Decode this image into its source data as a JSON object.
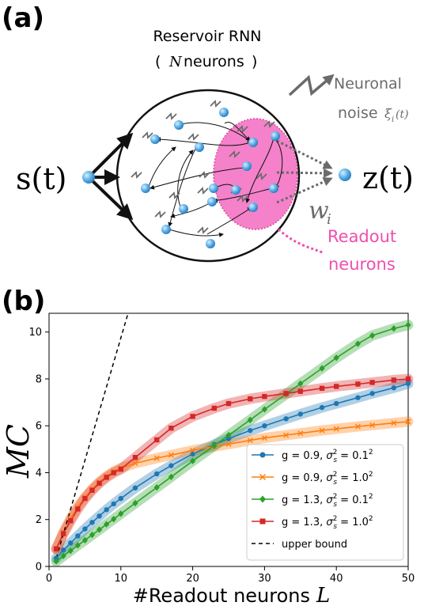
{
  "panel_a": {
    "label": "(a)",
    "title_line1": "Reservoir RNN",
    "title_line2_open": "(",
    "title_line2_var": "N",
    "title_line2_word": "neurons",
    "title_line2_close": ")",
    "input_label": "s(t)",
    "output_label": "z(t)",
    "weight_label": "w",
    "weight_subscript": "i",
    "noise_label_line1": "Neuronal",
    "noise_label_line2": "noise",
    "noise_symbol": "ξ",
    "noise_symbol_sub": "i",
    "noise_symbol_arg": "(t)",
    "readout_line1": "Readout",
    "readout_line2": "neurons",
    "colors": {
      "neuron": "#5aaee6",
      "readout_region": "#f26bbf",
      "readout_text": "#ee4fae",
      "noise": "#6b6b6b"
    }
  },
  "panel_b": {
    "label": "(b)",
    "legend_entries": [
      {
        "prefix": "g = 0.9,",
        "sigma": "σ",
        "sub": "s",
        "sup": "2",
        "suffix": "= 0.1",
        "sup2": "2"
      },
      {
        "prefix": "g = 0.9,",
        "sigma": "σ",
        "sub": "s",
        "sup": "2",
        "suffix": "= 1.0",
        "sup2": "2"
      },
      {
        "prefix": "g = 1.3,",
        "sigma": "σ",
        "sub": "s",
        "sup": "2",
        "suffix": "= 0.1",
        "sup2": "2"
      },
      {
        "prefix": "g = 1.3,",
        "sigma": "σ",
        "sub": "s",
        "sup": "2",
        "suffix": "= 1.0",
        "sup2": "2"
      },
      {
        "prefix": "upper bound",
        "sigma": "",
        "sub": "",
        "sup": "",
        "suffix": "",
        "sup2": ""
      }
    ]
  },
  "chart_data": {
    "type": "line",
    "xlabel": "#Readout neurons",
    "xlabel_var": "L",
    "ylabel": "MC",
    "xlim": [
      0,
      50
    ],
    "ylim": [
      0,
      10.8
    ],
    "xticks": [
      0,
      10,
      20,
      30,
      40,
      50
    ],
    "yticks": [
      0,
      2,
      4,
      6,
      8,
      10
    ],
    "grid": false,
    "legend_position": "center-right",
    "series": [
      {
        "color": "#1f77b4",
        "marker": "circle",
        "points": [
          [
            1,
            0.35
          ],
          [
            2,
            0.7
          ],
          [
            3,
            1.0
          ],
          [
            4,
            1.3
          ],
          [
            5,
            1.6
          ],
          [
            6,
            1.88
          ],
          [
            7,
            2.15
          ],
          [
            8,
            2.42
          ],
          [
            9,
            2.67
          ],
          [
            10,
            2.9
          ],
          [
            12,
            3.35
          ],
          [
            15,
            3.95
          ],
          [
            17,
            4.3
          ],
          [
            20,
            4.8
          ],
          [
            23,
            5.2
          ],
          [
            25,
            5.45
          ],
          [
            28,
            5.8
          ],
          [
            30,
            6.0
          ],
          [
            33,
            6.3
          ],
          [
            35,
            6.5
          ],
          [
            38,
            6.78
          ],
          [
            40,
            6.95
          ],
          [
            43,
            7.2
          ],
          [
            45,
            7.38
          ],
          [
            48,
            7.62
          ],
          [
            50,
            7.8
          ]
        ]
      },
      {
        "color": "#ff7f0e",
        "marker": "x",
        "points": [
          [
            1,
            0.75
          ],
          [
            2,
            1.45
          ],
          [
            3,
            2.05
          ],
          [
            4,
            2.55
          ],
          [
            5,
            2.95
          ],
          [
            6,
            3.3
          ],
          [
            7,
            3.6
          ],
          [
            8,
            3.85
          ],
          [
            9,
            4.05
          ],
          [
            10,
            4.2
          ],
          [
            12,
            4.4
          ],
          [
            15,
            4.62
          ],
          [
            17,
            4.75
          ],
          [
            20,
            4.95
          ],
          [
            23,
            5.12
          ],
          [
            25,
            5.22
          ],
          [
            28,
            5.38
          ],
          [
            30,
            5.48
          ],
          [
            33,
            5.6
          ],
          [
            35,
            5.68
          ],
          [
            38,
            5.8
          ],
          [
            40,
            5.87
          ],
          [
            43,
            5.97
          ],
          [
            45,
            6.03
          ],
          [
            48,
            6.12
          ],
          [
            50,
            6.18
          ]
        ]
      },
      {
        "color": "#2ca02c",
        "marker": "diamond",
        "points": [
          [
            1,
            0.22
          ],
          [
            2,
            0.45
          ],
          [
            3,
            0.67
          ],
          [
            4,
            0.9
          ],
          [
            5,
            1.12
          ],
          [
            6,
            1.35
          ],
          [
            7,
            1.57
          ],
          [
            8,
            1.8
          ],
          [
            9,
            2.02
          ],
          [
            10,
            2.25
          ],
          [
            12,
            2.7
          ],
          [
            15,
            3.37
          ],
          [
            17,
            3.82
          ],
          [
            20,
            4.5
          ],
          [
            23,
            5.15
          ],
          [
            25,
            5.6
          ],
          [
            28,
            6.25
          ],
          [
            30,
            6.7
          ],
          [
            33,
            7.35
          ],
          [
            35,
            7.8
          ],
          [
            38,
            8.45
          ],
          [
            40,
            8.9
          ],
          [
            43,
            9.5
          ],
          [
            45,
            9.85
          ],
          [
            48,
            10.15
          ],
          [
            50,
            10.3
          ]
        ]
      },
      {
        "color": "#d62728",
        "marker": "square",
        "points": [
          [
            1,
            0.75
          ],
          [
            2,
            1.4
          ],
          [
            3,
            1.95
          ],
          [
            4,
            2.45
          ],
          [
            5,
            2.9
          ],
          [
            6,
            3.25
          ],
          [
            7,
            3.55
          ],
          [
            8,
            3.8
          ],
          [
            9,
            4.0
          ],
          [
            10,
            4.15
          ],
          [
            12,
            4.65
          ],
          [
            15,
            5.4
          ],
          [
            17,
            5.9
          ],
          [
            20,
            6.4
          ],
          [
            23,
            6.75
          ],
          [
            25,
            6.95
          ],
          [
            28,
            7.15
          ],
          [
            30,
            7.25
          ],
          [
            33,
            7.38
          ],
          [
            35,
            7.47
          ],
          [
            38,
            7.6
          ],
          [
            40,
            7.68
          ],
          [
            43,
            7.78
          ],
          [
            45,
            7.85
          ],
          [
            48,
            7.95
          ],
          [
            50,
            8.0
          ]
        ]
      },
      {
        "color": "#000000",
        "marker": "none",
        "dashed": true,
        "points": [
          [
            1,
            0.35
          ],
          [
            11,
            10.8
          ]
        ]
      }
    ]
  }
}
